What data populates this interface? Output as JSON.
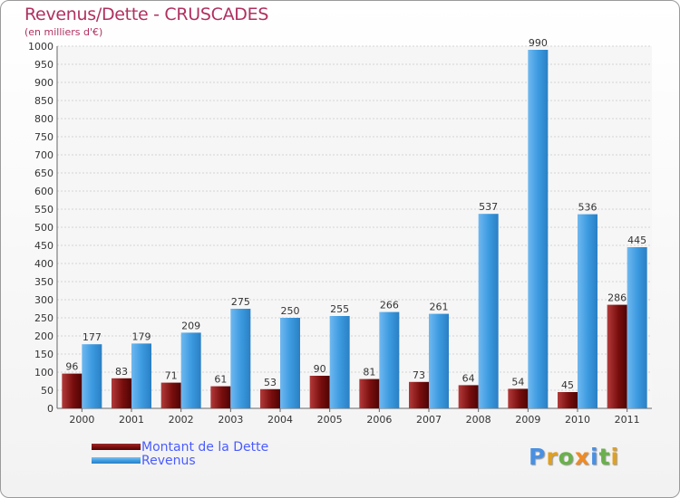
{
  "chart_data": {
    "type": "bar",
    "title": "Revenus/Dette - CRUSCADES",
    "subtitle": "(en milliers d'€)",
    "categories": [
      "2000",
      "2001",
      "2002",
      "2003",
      "2004",
      "2005",
      "2006",
      "2007",
      "2008",
      "2009",
      "2010",
      "2011"
    ],
    "series": [
      {
        "name": "Montant de la Dette",
        "color": "#7a0e0e",
        "values": [
          96,
          83,
          71,
          61,
          53,
          90,
          81,
          73,
          64,
          54,
          45,
          286
        ]
      },
      {
        "name": "Revenus",
        "color": "#3d9be0",
        "values": [
          177,
          179,
          209,
          275,
          250,
          255,
          266,
          261,
          537,
          990,
          536,
          445
        ]
      }
    ],
    "ylim": [
      0,
      1000
    ],
    "yticks": [
      0,
      50,
      100,
      150,
      200,
      250,
      300,
      350,
      400,
      450,
      500,
      550,
      600,
      650,
      700,
      750,
      800,
      850,
      900,
      950,
      1000
    ],
    "grid": true,
    "legend_position": "bottom-left"
  },
  "branding": {
    "logo_letters": [
      {
        "ch": "P",
        "color": "#4a90e2"
      },
      {
        "ch": "r",
        "color": "#e0a020"
      },
      {
        "ch": "o",
        "color": "#6ab04c"
      },
      {
        "ch": "x",
        "color": "#f08a24"
      },
      {
        "ch": "i",
        "color": "#4a90e2"
      },
      {
        "ch": "t",
        "color": "#6ab04c"
      },
      {
        "ch": "i",
        "color": "#e0a020"
      }
    ]
  }
}
